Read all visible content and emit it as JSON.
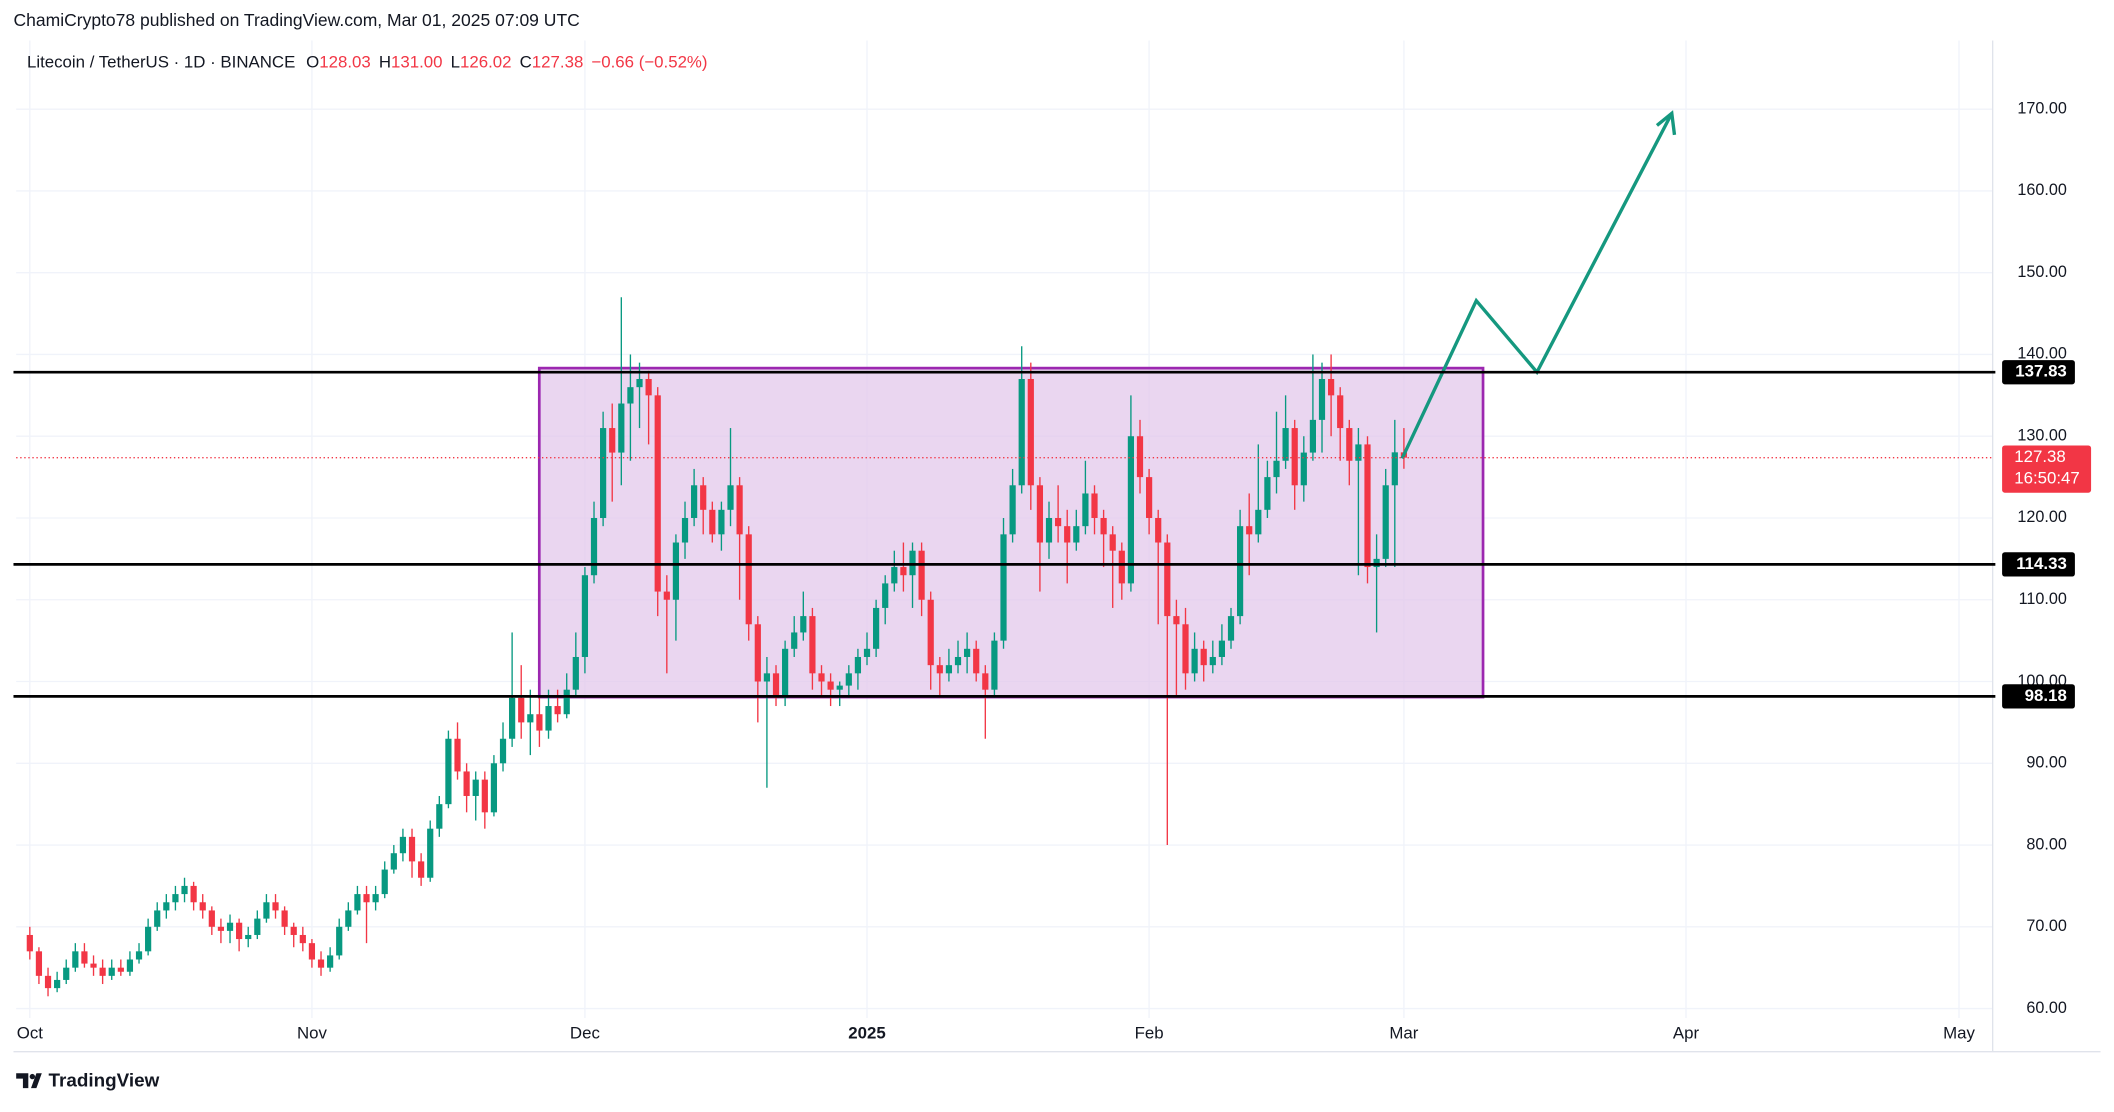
{
  "header": {
    "attribution": "ChamiCrypto78 published on TradingView.com, Mar 01, 2025 07:09 UTC",
    "brand": "TradingView"
  },
  "chart_data": {
    "type": "candlestick",
    "symbol": "Litecoin / TetherUS · 1D · BINANCE",
    "legend": [
      {
        "key": "O",
        "value": "128.03"
      },
      {
        "key": "H",
        "value": "131.00"
      },
      {
        "key": "L",
        "value": "126.02"
      },
      {
        "key": "C",
        "value": "127.38"
      }
    ],
    "change": "−0.66 (−0.52%)",
    "up_color": "#089981",
    "down_color": "#f23645",
    "xlim": [
      -1.5,
      215.7
    ],
    "xticks": [
      {
        "value": 0,
        "label": "Oct"
      },
      {
        "value": 31,
        "label": "Nov"
      },
      {
        "value": 61,
        "label": "Dec"
      },
      {
        "value": 92,
        "label": "2025"
      },
      {
        "value": 123,
        "label": "Feb"
      },
      {
        "value": 151,
        "label": "Mar"
      },
      {
        "value": 182,
        "label": "Apr"
      },
      {
        "value": 212,
        "label": "May"
      }
    ],
    "ylim": [
      58.85,
      178.4
    ],
    "yticks": [
      {
        "value": 60,
        "label": "60.00"
      },
      {
        "value": 70,
        "label": "70.00"
      },
      {
        "value": 80,
        "label": "80.00"
      },
      {
        "value": 90,
        "label": "90.00"
      },
      {
        "value": 100,
        "label": "100.00"
      },
      {
        "value": 110,
        "label": "110.00"
      },
      {
        "value": 120,
        "label": "120.00"
      },
      {
        "value": 130,
        "label": "130.00"
      },
      {
        "value": 140,
        "label": "140.00"
      },
      {
        "value": 150,
        "label": "150.00"
      },
      {
        "value": 160,
        "label": "160.00"
      },
      {
        "value": 170,
        "label": "170.00"
      }
    ],
    "grid": true,
    "levels": [
      137.83,
      114.33,
      98.18
    ],
    "last_price": 127.38,
    "countdown": "16:50:47",
    "ohlc": [
      [
        69,
        70,
        66,
        67
      ],
      [
        67,
        67.5,
        63,
        64
      ],
      [
        64,
        65,
        61.5,
        62.5
      ],
      [
        62.5,
        64.5,
        62,
        63.5
      ],
      [
        63.5,
        66,
        63,
        65
      ],
      [
        65,
        68,
        64.5,
        67
      ],
      [
        67,
        68,
        65,
        65.5
      ],
      [
        65.5,
        66.5,
        64,
        65
      ],
      [
        65,
        66,
        63,
        64
      ],
      [
        64,
        66,
        63.5,
        65
      ],
      [
        65,
        66,
        64,
        64.5
      ],
      [
        64.5,
        67,
        64,
        66
      ],
      [
        66,
        68,
        65.5,
        67
      ],
      [
        67,
        71,
        66.5,
        70
      ],
      [
        70,
        73,
        69.5,
        72
      ],
      [
        72,
        74,
        71,
        73
      ],
      [
        73,
        75,
        72,
        74
      ],
      [
        74,
        76,
        73,
        75
      ],
      [
        75,
        75.5,
        72,
        73
      ],
      [
        73,
        74,
        71,
        72
      ],
      [
        72,
        72.5,
        69,
        70
      ],
      [
        70,
        71,
        68,
        69.5
      ],
      [
        69.5,
        71.5,
        68,
        70.5
      ],
      [
        70.5,
        71,
        67,
        68.5
      ],
      [
        68.5,
        70,
        67.5,
        69
      ],
      [
        69,
        72,
        68.5,
        71
      ],
      [
        71,
        74,
        70.5,
        73
      ],
      [
        73,
        74,
        71,
        72
      ],
      [
        72,
        72.5,
        69,
        70
      ],
      [
        70,
        70.5,
        67.5,
        69
      ],
      [
        69,
        70,
        67,
        68
      ],
      [
        68,
        68.5,
        65,
        66
      ],
      [
        66,
        67,
        64,
        65
      ],
      [
        65,
        67.5,
        64.5,
        66.5
      ],
      [
        66.5,
        71,
        66,
        70
      ],
      [
        70,
        73,
        69.5,
        72
      ],
      [
        72,
        75,
        71.5,
        74
      ],
      [
        74,
        75,
        68,
        73
      ],
      [
        73,
        75,
        72,
        74
      ],
      [
        74,
        78,
        73.5,
        77
      ],
      [
        77,
        80,
        76.5,
        79
      ],
      [
        79,
        82,
        78,
        81
      ],
      [
        81,
        82,
        76,
        78
      ],
      [
        78,
        79,
        75,
        76
      ],
      [
        76,
        83,
        75.5,
        82
      ],
      [
        82,
        86,
        81,
        85
      ],
      [
        85,
        94,
        84.5,
        93
      ],
      [
        93,
        95,
        88,
        89
      ],
      [
        89,
        90,
        84,
        86
      ],
      [
        86,
        89,
        83,
        88
      ],
      [
        88,
        89,
        82,
        84
      ],
      [
        84,
        91,
        83.5,
        90
      ],
      [
        90,
        95,
        89,
        93
      ],
      [
        93,
        106,
        92,
        98
      ],
      [
        98,
        102,
        93,
        95
      ],
      [
        95,
        99,
        91,
        96
      ],
      [
        96,
        98,
        92,
        94
      ],
      [
        94,
        99,
        93,
        97
      ],
      [
        97,
        99,
        95,
        96
      ],
      [
        96,
        101,
        95.5,
        99
      ],
      [
        99,
        106,
        98,
        103
      ],
      [
        103,
        114,
        101,
        113
      ],
      [
        113,
        122,
        112,
        120
      ],
      [
        120,
        133,
        119,
        131
      ],
      [
        131,
        134,
        122,
        128
      ],
      [
        128,
        147,
        124,
        134
      ],
      [
        134,
        140,
        127,
        136
      ],
      [
        136,
        139,
        131,
        137
      ],
      [
        137,
        138,
        129,
        135
      ],
      [
        135,
        136,
        108,
        111
      ],
      [
        111,
        113,
        101,
        110
      ],
      [
        110,
        118,
        105,
        117
      ],
      [
        117,
        122,
        115,
        120
      ],
      [
        120,
        126,
        119,
        124
      ],
      [
        124,
        125,
        118,
        121
      ],
      [
        121,
        122,
        117,
        118
      ],
      [
        118,
        122,
        116,
        121
      ],
      [
        121,
        131,
        119,
        124
      ],
      [
        124,
        125,
        110,
        118
      ],
      [
        118,
        119,
        105,
        107
      ],
      [
        107,
        108,
        95,
        100
      ],
      [
        100,
        103,
        87,
        101
      ],
      [
        101,
        102,
        97,
        98
      ],
      [
        98,
        105,
        97,
        104
      ],
      [
        104,
        108,
        103,
        106
      ],
      [
        106,
        111,
        105,
        108
      ],
      [
        108,
        109,
        99,
        101
      ],
      [
        101,
        102,
        98,
        100
      ],
      [
        100,
        101,
        97,
        99
      ],
      [
        99,
        100,
        97,
        99.5
      ],
      [
        99.5,
        102,
        98,
        101
      ],
      [
        101,
        104,
        99,
        103
      ],
      [
        103,
        106,
        102,
        104
      ],
      [
        104,
        110,
        103,
        109
      ],
      [
        109,
        113,
        107,
        112
      ],
      [
        112,
        116,
        111,
        114
      ],
      [
        114,
        117,
        111,
        113
      ],
      [
        113,
        117,
        109,
        116
      ],
      [
        116,
        117,
        108,
        110
      ],
      [
        110,
        111,
        99,
        102
      ],
      [
        102,
        103,
        98,
        101
      ],
      [
        101,
        104,
        100,
        102
      ],
      [
        102,
        105,
        101,
        103
      ],
      [
        103,
        106,
        101,
        104
      ],
      [
        104,
        105,
        100,
        101
      ],
      [
        101,
        102,
        93,
        99
      ],
      [
        99,
        106,
        98,
        105
      ],
      [
        105,
        120,
        104,
        118
      ],
      [
        118,
        126,
        117,
        124
      ],
      [
        124,
        141,
        123,
        137
      ],
      [
        137,
        139,
        121,
        124
      ],
      [
        124,
        125,
        111,
        117
      ],
      [
        117,
        122,
        115,
        120
      ],
      [
        120,
        124,
        117,
        119
      ],
      [
        119,
        121,
        112,
        117
      ],
      [
        117,
        121,
        116,
        119
      ],
      [
        119,
        127,
        118,
        123
      ],
      [
        123,
        124,
        118,
        120
      ],
      [
        120,
        121,
        114,
        118
      ],
      [
        118,
        119,
        109,
        116
      ],
      [
        116,
        117,
        110,
        112
      ],
      [
        112,
        135,
        111,
        130
      ],
      [
        130,
        132,
        123,
        125
      ],
      [
        125,
        126,
        118,
        120
      ],
      [
        120,
        121,
        107,
        117
      ],
      [
        117,
        118,
        80,
        108
      ],
      [
        108,
        110,
        98,
        107
      ],
      [
        107,
        109,
        99,
        101
      ],
      [
        101,
        106,
        100,
        104
      ],
      [
        104,
        105,
        100,
        102
      ],
      [
        102,
        105,
        101,
        103
      ],
      [
        103,
        107,
        102,
        105
      ],
      [
        105,
        109,
        104,
        108
      ],
      [
        108,
        121,
        107,
        119
      ],
      [
        119,
        123,
        113,
        118
      ],
      [
        118,
        129,
        117,
        121
      ],
      [
        121,
        127,
        120,
        125
      ],
      [
        125,
        133,
        123,
        127
      ],
      [
        127,
        135,
        126,
        131
      ],
      [
        131,
        132,
        121,
        124
      ],
      [
        124,
        130,
        122,
        128
      ],
      [
        128,
        140,
        127,
        132
      ],
      [
        132,
        139,
        128,
        137
      ],
      [
        137,
        140,
        130,
        135
      ],
      [
        135,
        136,
        127,
        131
      ],
      [
        131,
        132,
        124,
        127
      ],
      [
        127,
        131,
        113,
        129
      ],
      [
        129,
        130,
        112,
        114
      ],
      [
        114,
        118,
        106,
        115
      ],
      [
        115,
        126,
        114,
        124
      ],
      [
        124,
        132,
        114,
        128.03
      ],
      [
        128.03,
        131,
        126.02,
        127.38
      ]
    ]
  }
}
